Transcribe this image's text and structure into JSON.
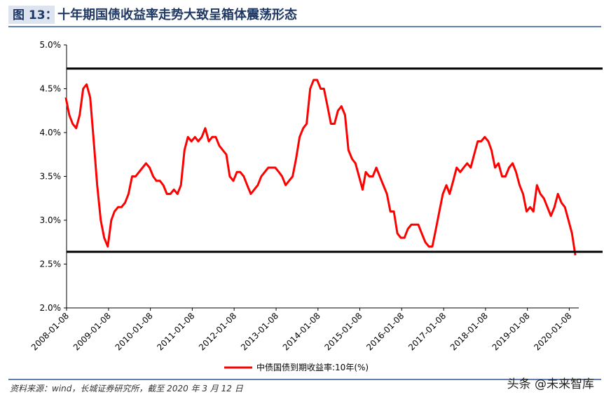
{
  "header": {
    "figure_label": "图 13：",
    "title": "十年期国债收益率走势大致呈箱体震荡形态"
  },
  "chart_data": {
    "type": "line",
    "x": [
      "2008-01",
      "2008-02",
      "2008-03",
      "2008-04",
      "2008-05",
      "2008-06",
      "2008-07",
      "2008-08",
      "2008-09",
      "2008-10",
      "2008-11",
      "2008-12",
      "2009-01",
      "2009-02",
      "2009-03",
      "2009-04",
      "2009-05",
      "2009-06",
      "2009-07",
      "2009-08",
      "2009-09",
      "2009-10",
      "2009-11",
      "2009-12",
      "2010-01",
      "2010-02",
      "2010-03",
      "2010-04",
      "2010-05",
      "2010-06",
      "2010-07",
      "2010-08",
      "2010-09",
      "2010-10",
      "2010-11",
      "2010-12",
      "2011-01",
      "2011-02",
      "2011-03",
      "2011-04",
      "2011-05",
      "2011-06",
      "2011-07",
      "2011-08",
      "2011-09",
      "2011-10",
      "2011-11",
      "2011-12",
      "2012-01",
      "2012-02",
      "2012-03",
      "2012-04",
      "2012-05",
      "2012-06",
      "2012-07",
      "2012-08",
      "2012-09",
      "2012-10",
      "2012-11",
      "2012-12",
      "2013-01",
      "2013-02",
      "2013-03",
      "2013-04",
      "2013-05",
      "2013-06",
      "2013-07",
      "2013-08",
      "2013-09",
      "2013-10",
      "2013-11",
      "2013-12",
      "2014-01",
      "2014-02",
      "2014-03",
      "2014-04",
      "2014-05",
      "2014-06",
      "2014-07",
      "2014-08",
      "2014-09",
      "2014-10",
      "2014-11",
      "2014-12",
      "2015-01",
      "2015-02",
      "2015-03",
      "2015-04",
      "2015-05",
      "2015-06",
      "2015-07",
      "2015-08",
      "2015-09",
      "2015-10",
      "2015-11",
      "2015-12",
      "2016-01",
      "2016-02",
      "2016-03",
      "2016-04",
      "2016-05",
      "2016-06",
      "2016-07",
      "2016-08",
      "2016-09",
      "2016-10",
      "2016-11",
      "2016-12",
      "2017-01",
      "2017-02",
      "2017-03",
      "2017-04",
      "2017-05",
      "2017-06",
      "2017-07",
      "2017-08",
      "2017-09",
      "2017-10",
      "2017-11",
      "2017-12",
      "2018-01",
      "2018-02",
      "2018-03",
      "2018-04",
      "2018-05",
      "2018-06",
      "2018-07",
      "2018-08",
      "2018-09",
      "2018-10",
      "2018-11",
      "2018-12",
      "2019-01",
      "2019-02",
      "2019-03",
      "2019-04",
      "2019-05",
      "2019-06",
      "2019-07",
      "2019-08",
      "2019-09",
      "2019-10",
      "2019-11",
      "2019-12",
      "2020-01",
      "2020-02",
      "2020-03"
    ],
    "series": [
      {
        "name": "中债国债到期收益率:10年(%)",
        "color": "#ff0000",
        "values": [
          4.4,
          4.2,
          4.1,
          4.05,
          4.2,
          4.5,
          4.55,
          4.4,
          3.9,
          3.4,
          3.0,
          2.8,
          2.7,
          3.0,
          3.1,
          3.15,
          3.15,
          3.2,
          3.3,
          3.5,
          3.5,
          3.55,
          3.6,
          3.65,
          3.6,
          3.5,
          3.45,
          3.45,
          3.4,
          3.3,
          3.3,
          3.35,
          3.3,
          3.4,
          3.8,
          3.95,
          3.9,
          3.95,
          3.9,
          3.95,
          4.05,
          3.9,
          3.95,
          3.95,
          3.85,
          3.8,
          3.75,
          3.5,
          3.45,
          3.55,
          3.55,
          3.5,
          3.4,
          3.3,
          3.35,
          3.4,
          3.5,
          3.55,
          3.6,
          3.6,
          3.6,
          3.55,
          3.5,
          3.4,
          3.45,
          3.5,
          3.7,
          3.95,
          4.05,
          4.1,
          4.5,
          4.6,
          4.6,
          4.5,
          4.5,
          4.3,
          4.1,
          4.1,
          4.25,
          4.3,
          4.2,
          3.8,
          3.7,
          3.65,
          3.5,
          3.35,
          3.55,
          3.5,
          3.5,
          3.6,
          3.5,
          3.4,
          3.3,
          3.1,
          3.1,
          2.85,
          2.8,
          2.8,
          2.9,
          2.95,
          2.95,
          2.95,
          2.85,
          2.75,
          2.7,
          2.7,
          2.9,
          3.1,
          3.3,
          3.4,
          3.3,
          3.45,
          3.6,
          3.55,
          3.6,
          3.65,
          3.6,
          3.75,
          3.9,
          3.9,
          3.95,
          3.9,
          3.8,
          3.6,
          3.65,
          3.5,
          3.5,
          3.6,
          3.65,
          3.55,
          3.4,
          3.3,
          3.1,
          3.15,
          3.1,
          3.4,
          3.3,
          3.25,
          3.15,
          3.05,
          3.15,
          3.3,
          3.2,
          3.15,
          3.0,
          2.85,
          2.6
        ]
      }
    ],
    "reference_lines": [
      4.73,
      2.64
    ],
    "xlim": [
      "2008-01-08",
      "2020-03-31"
    ],
    "xticks": [
      "2008-01-08",
      "2009-01-08",
      "2010-01-08",
      "2011-01-08",
      "2012-01-08",
      "2013-01-08",
      "2014-01-08",
      "2015-01-08",
      "2016-01-08",
      "2017-01-08",
      "2018-01-08",
      "2019-01-08",
      "2020-01-08"
    ],
    "ylim": [
      2,
      5
    ],
    "yticks": [
      {
        "value": 2,
        "label": "2.0%"
      },
      {
        "value": 2.5,
        "label": "2.5%"
      },
      {
        "value": 3,
        "label": "3.0%"
      },
      {
        "value": 3.5,
        "label": "3.5%"
      },
      {
        "value": 4,
        "label": "4.0%"
      },
      {
        "value": 4.5,
        "label": "4.5%"
      },
      {
        "value": 5,
        "label": "5.0%"
      }
    ],
    "grid": false
  },
  "footer": {
    "source": "资料来源：wind，长城证券研究所，截至 2020 年 3 月 12 日",
    "watermark": "头条 @未来智库"
  }
}
